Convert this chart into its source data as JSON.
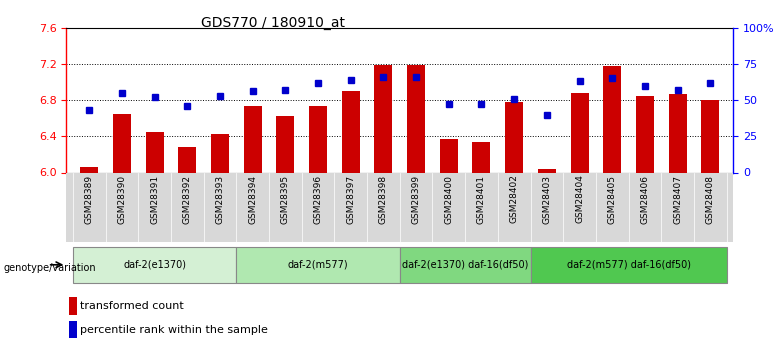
{
  "title": "GDS770 / 180910_at",
  "samples": [
    "GSM28389",
    "GSM28390",
    "GSM28391",
    "GSM28392",
    "GSM28393",
    "GSM28394",
    "GSM28395",
    "GSM28396",
    "GSM28397",
    "GSM28398",
    "GSM28399",
    "GSM28400",
    "GSM28401",
    "GSM28402",
    "GSM28403",
    "GSM28404",
    "GSM28405",
    "GSM28406",
    "GSM28407",
    "GSM28408"
  ],
  "transformed_count": [
    6.06,
    6.65,
    6.45,
    6.28,
    6.43,
    6.73,
    6.62,
    6.73,
    6.9,
    7.19,
    7.19,
    6.37,
    6.34,
    6.78,
    6.04,
    6.88,
    7.18,
    6.84,
    6.87,
    6.8
  ],
  "percentile_rank": [
    43,
    55,
    52,
    46,
    53,
    56,
    57,
    62,
    64,
    66,
    66,
    47,
    47,
    51,
    40,
    63,
    65,
    60,
    57,
    62
  ],
  "groups": [
    {
      "label": "daf-2(e1370)",
      "start": 0,
      "end": 4,
      "color": "#d4f0d4"
    },
    {
      "label": "daf-2(m577)",
      "start": 5,
      "end": 9,
      "color": "#b0e8b0"
    },
    {
      "label": "daf-2(e1370) daf-16(df50)",
      "start": 10,
      "end": 13,
      "color": "#80d880"
    },
    {
      "label": "daf-2(m577) daf-16(df50)",
      "start": 14,
      "end": 19,
      "color": "#50c850"
    }
  ],
  "ylim_left": [
    6.0,
    7.6
  ],
  "ylim_right": [
    0,
    100
  ],
  "yticks_left": [
    6.0,
    6.4,
    6.8,
    7.2,
    7.6
  ],
  "yticks_right": [
    0,
    25,
    50,
    75,
    100
  ],
  "ytick_labels_right": [
    "0",
    "25",
    "50",
    "75",
    "100%"
  ],
  "bar_color": "#cc0000",
  "dot_color": "#0000cc",
  "bar_width": 0.55,
  "bg_color": "white"
}
